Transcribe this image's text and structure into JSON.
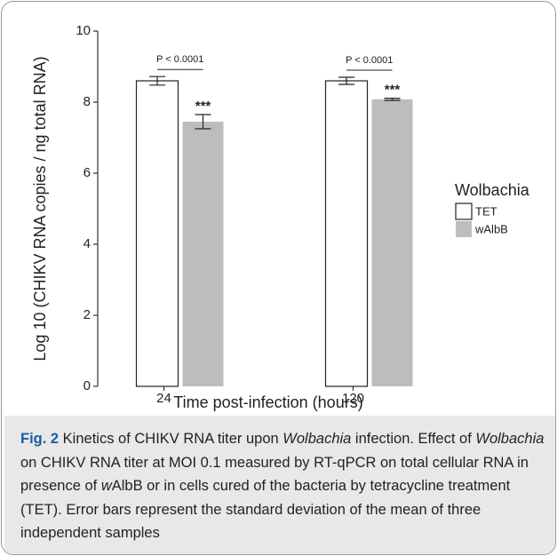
{
  "chart_data": {
    "type": "bar",
    "x_label": "Time post-infection (hours)",
    "y_label": "Log 10 (CHIKV RNA copies / ng total RNA)",
    "categories": [
      "24",
      "120"
    ],
    "series": [
      {
        "name": "TET",
        "color": "#ffffff",
        "values": [
          8.6,
          8.6
        ],
        "errors": [
          0.12,
          0.1
        ]
      },
      {
        "name": "wAlbB",
        "color": "#bdbdbd",
        "values": [
          7.45,
          8.08
        ],
        "errors": [
          0.2,
          0.03
        ]
      }
    ],
    "ylim": [
      0,
      10
    ],
    "yticks": [
      0,
      2,
      4,
      6,
      8,
      10
    ],
    "legend_title": "Wolbachia",
    "brackets": [
      "P < 0.0001",
      "P < 0.0001"
    ],
    "stars": [
      "***",
      "***"
    ]
  },
  "caption": [
    {
      "text": "Fig. 2",
      "bold": true
    },
    {
      "text": " Kinetics of CHIKV RNA titer upon "
    },
    {
      "text": "Wolbachia",
      "italic": true
    },
    {
      "text": " infection. Effect of "
    },
    {
      "text": "Wolbachia",
      "italic": true
    },
    {
      "text": " on CHIKV RNA titer at MOI 0.1 measured by RT-qPCR on total cellular RNA in presence of "
    },
    {
      "text": "w",
      "italic": true
    },
    {
      "text": "AlbB or in cells cured of the bacteria by tetracycline treatment (TET). Error bars represent the standard deviation of the mean of three independent samples"
    }
  ]
}
